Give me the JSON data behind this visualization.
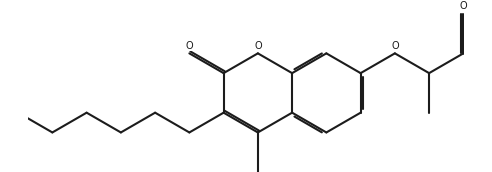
{
  "bg": "#ffffff",
  "lc": "#1c1c1c",
  "lw": 1.5,
  "doffset": 0.055,
  "figsize": [
    4.92,
    1.72
  ],
  "dpi": 100,
  "fs": 7.0,
  "xlim": [
    -5.8,
    5.2
  ],
  "ylim": [
    -2.0,
    2.2
  ]
}
